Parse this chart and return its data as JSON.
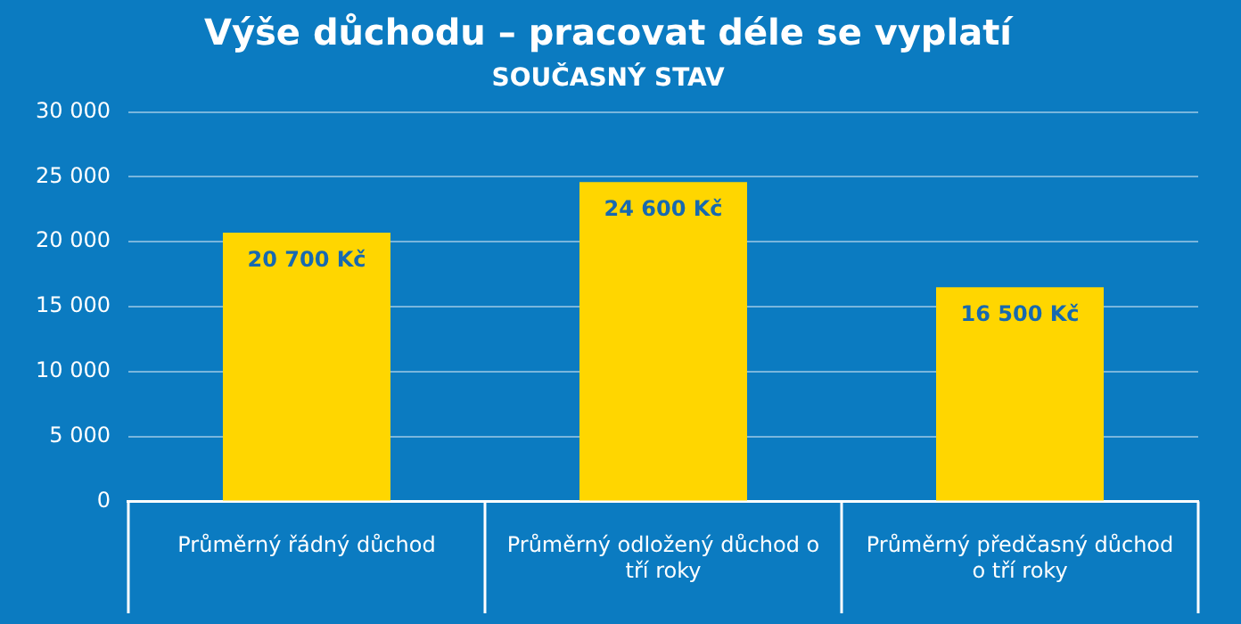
{
  "chart_data": {
    "type": "bar",
    "title": "Výše důchodu – pracovat déle se vyplatí",
    "subtitle": "SOUČASNÝ STAV",
    "categories": [
      "Průměrný řádný důchod",
      "Průměrný odložený důchod o tří roky",
      "Průměrný předčasný důchod o tří roky"
    ],
    "values": [
      20700,
      24600,
      16500
    ],
    "color": "#ffd600",
    "value_labels": [
      "20 700 Kč",
      "24 600 Kč",
      "16 500 Kč"
    ],
    "ylim": [
      0,
      30000
    ],
    "yticks": [
      {
        "value": 0,
        "label": "0"
      },
      {
        "value": 5000,
        "label": "5 000"
      },
      {
        "value": 10000,
        "label": "10 000"
      },
      {
        "value": 15000,
        "label": "15 000"
      },
      {
        "value": 20000,
        "label": "20 000"
      },
      {
        "value": 25000,
        "label": "25 000"
      },
      {
        "value": 30000,
        "label": "30 000"
      }
    ],
    "grid": "y",
    "legend": false
  }
}
